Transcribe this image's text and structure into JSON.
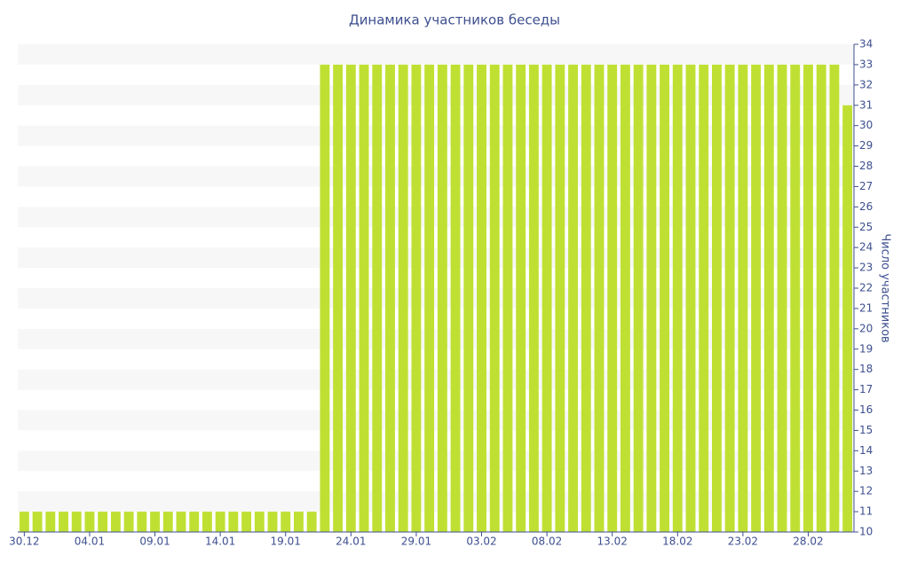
{
  "chart_data": {
    "type": "bar",
    "title": "Динамика участников беседы",
    "y_axis_label": "Число участников",
    "categories": [
      "30.12",
      null,
      null,
      null,
      null,
      "04.01",
      null,
      null,
      null,
      null,
      "09.01",
      null,
      null,
      null,
      null,
      "14.01",
      null,
      null,
      null,
      null,
      "19.01",
      null,
      null,
      null,
      null,
      "24.01",
      null,
      null,
      null,
      null,
      "29.01",
      null,
      null,
      null,
      null,
      "03.02",
      null,
      null,
      null,
      null,
      "08.02",
      null,
      null,
      null,
      null,
      "13.02",
      null,
      null,
      null,
      null,
      "18.02",
      null,
      null,
      null,
      null,
      "23.02",
      null,
      null,
      null,
      null,
      "28.02",
      null,
      null,
      null
    ],
    "values": [
      11,
      11,
      11,
      11,
      11,
      11,
      11,
      11,
      11,
      11,
      11,
      11,
      11,
      11,
      11,
      11,
      11,
      11,
      11,
      11,
      11,
      11,
      11,
      33,
      33,
      33,
      33,
      33,
      33,
      33,
      33,
      33,
      33,
      33,
      33,
      33,
      33,
      33,
      33,
      33,
      33,
      33,
      33,
      33,
      33,
      33,
      33,
      33,
      33,
      33,
      33,
      33,
      33,
      33,
      33,
      33,
      33,
      33,
      33,
      33,
      33,
      33,
      33,
      31
    ],
    "color": "#bfe033",
    "ylim": [
      10,
      34
    ],
    "yticks": [
      10,
      11,
      12,
      13,
      14,
      15,
      16,
      17,
      18,
      19,
      20,
      21,
      22,
      23,
      24,
      25,
      26,
      27,
      28,
      29,
      30,
      31,
      32,
      33,
      34
    ],
    "y_axis_side": "right",
    "grid": "bands"
  }
}
